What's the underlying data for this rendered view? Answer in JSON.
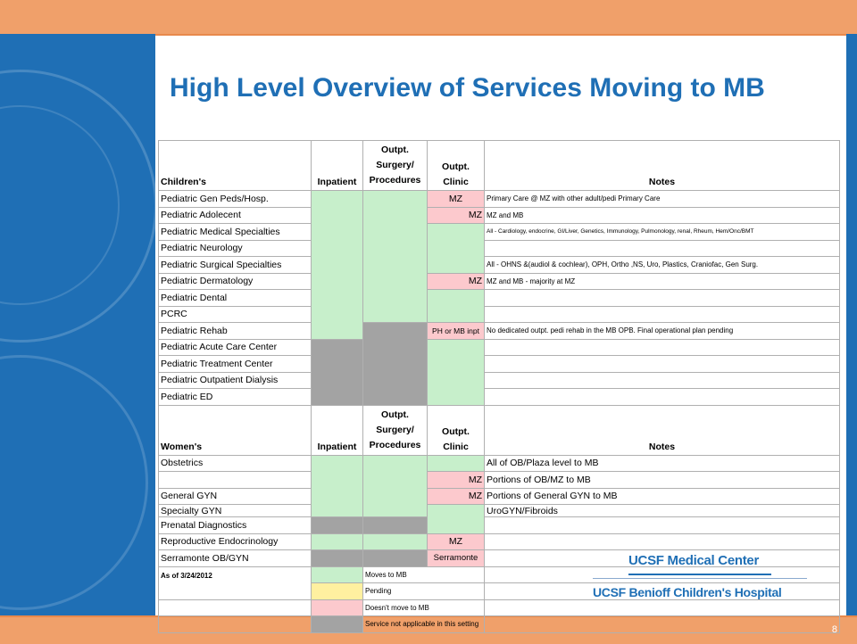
{
  "title": "High Level Overview of Services Moving to MB",
  "page_number": "8",
  "headers": {
    "childrens": "Children's",
    "womens": "Women's",
    "inpatient": "Inpatient",
    "surgery_l1": "Outpt.",
    "surgery_l2": "Surgery/",
    "surgery_l3": "Procedures",
    "clinic_l1": "Outpt.",
    "clinic_l2": "Clinic",
    "notes": "Notes"
  },
  "children": [
    {
      "service": "Pediatric Gen Peds/Hosp.",
      "clinic_label": "MZ",
      "note": "Primary Care @ MZ with other adult/pedi Primary Care"
    },
    {
      "service": "Pediatric Adolecent",
      "clinic_label": "MZ",
      "note": "MZ and MB"
    },
    {
      "service": "Pediatric Medical Specialties",
      "clinic_label": "",
      "note": "All - Cardiology, endocrine, GI/Liver, Genetics, Immunology, Pulmonology, renal, Rheum, Hem/Onc/BMT"
    },
    {
      "service": "Pediatric Neurology",
      "clinic_label": "",
      "note": ""
    },
    {
      "service": "Pediatric Surgical Specialties",
      "clinic_label": "",
      "note": "All - OHNS &(audiol & cochlear), OPH, Ortho ,NS, Uro, Plastics, Craniofac, Gen Surg."
    },
    {
      "service": "Pediatric Dermatology",
      "clinic_label": "MZ",
      "note": "MZ and MB - majority at MZ"
    },
    {
      "service": "Pediatric Dental",
      "clinic_label": "",
      "note": ""
    },
    {
      "service": "PCRC",
      "clinic_label": "",
      "note": ""
    },
    {
      "service": "Pediatric Rehab",
      "clinic_label": "PH or MB inpt",
      "note": "No dedicated outpt. pedi rehab in the MB OPB.  Final operational plan pending"
    },
    {
      "service": "Pediatric Acute Care Center",
      "clinic_label": "",
      "note": ""
    },
    {
      "service": "Pediatric Treatment Center",
      "clinic_label": "",
      "note": ""
    },
    {
      "service": "Pediatric Outpatient Dialysis",
      "clinic_label": "",
      "note": ""
    },
    {
      "service": "Pediatric ED",
      "clinic_label": "",
      "note": ""
    }
  ],
  "women": [
    {
      "service": "Obstetrics",
      "clinic_label": "",
      "note": "All of OB/Plaza level to MB"
    },
    {
      "service": "",
      "clinic_label": "MZ",
      "note": "Portions of OB/MZ to MB"
    },
    {
      "service": "General GYN",
      "clinic_label": "MZ",
      "note": "Portions of General GYN to MB"
    },
    {
      "service": "Specialty GYN",
      "clinic_label": "",
      "note": "UroGYN/Fibroids"
    },
    {
      "service": "Prenatal Diagnostics",
      "clinic_label": "",
      "note": ""
    },
    {
      "service": "Reproductive Endocrinology",
      "clinic_label": "MZ",
      "note": ""
    },
    {
      "service": "Serramonte OB/GYN",
      "clinic_label": "Serramonte",
      "note": ""
    }
  ],
  "as_of": "As of 3/24/2012",
  "legend": [
    {
      "label": "Moves to MB",
      "color": "#c7efcb"
    },
    {
      "label": "Pending",
      "color": "#fff0a0"
    },
    {
      "label": "Doesn't move to MB",
      "color": "#fcc9cd"
    },
    {
      "label": "Service not applicable in this setting",
      "color": "#a3a3a3"
    }
  ],
  "logos": {
    "medical_center": "UCSF Medical Center",
    "childrens_hospital": "UCSF Benioff Children's Hospital"
  }
}
